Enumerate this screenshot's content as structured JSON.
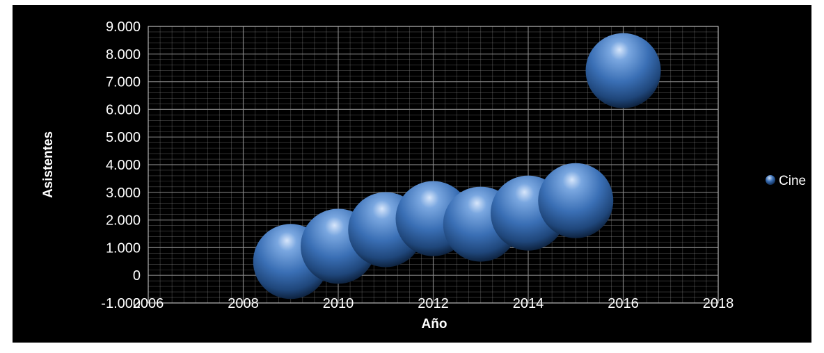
{
  "chart_data": {
    "type": "bubble",
    "title": "",
    "xlabel": "Año",
    "ylabel": "Asistentes",
    "xlim": [
      2006,
      2018
    ],
    "ylim": [
      -1000,
      9000
    ],
    "x_ticks": [
      2006,
      2008,
      2010,
      2012,
      2014,
      2016,
      2018
    ],
    "x_tick_labels": [
      "2006",
      "2008",
      "2010",
      "2012",
      "2014",
      "2016",
      "2018"
    ],
    "y_ticks": [
      -1000,
      0,
      1000,
      2000,
      3000,
      4000,
      5000,
      6000,
      7000,
      8000,
      9000
    ],
    "y_tick_labels": [
      "-1.000",
      "0",
      "1.000",
      "2.000",
      "3.000",
      "4.000",
      "5.000",
      "6.000",
      "7.000",
      "8.000",
      "9.000"
    ],
    "grid": true,
    "legend_position": "right",
    "colors": {
      "background": "#000000",
      "grid": "#8c8c8c",
      "bubble": "#3a6fb5",
      "text": "#ffffff"
    },
    "series": [
      {
        "name": "Cine",
        "x": [
          2009,
          2010,
          2011,
          2012,
          2013,
          2014,
          2015,
          2016
        ],
        "y": [
          500,
          1050,
          1650,
          2050,
          1850,
          2250,
          2700,
          7400
        ]
      }
    ]
  }
}
